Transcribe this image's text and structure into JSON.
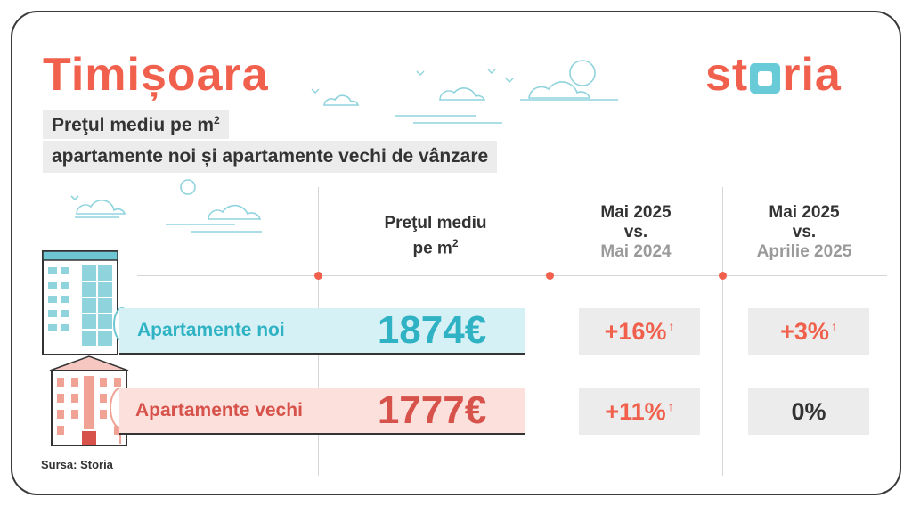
{
  "title": "Timișoara",
  "logo": {
    "part1": "st",
    "part2": "ria"
  },
  "subtitle": {
    "line1": "Preţul mediu pe m",
    "line1_sup": "2",
    "line2": "apartamente noi și apartamente vechi de vânzare"
  },
  "columns": {
    "price": {
      "line1": "Preţul mediu",
      "line2": "pe m",
      "sup": "2"
    },
    "yoy": {
      "line1": "Mai 2025",
      "line2": "vs.",
      "line3": "Mai 2024"
    },
    "mom": {
      "line1": "Mai 2025",
      "line2": "vs.",
      "line3": "Aprilie 2025"
    }
  },
  "rows": [
    {
      "label": "Apartamente noi",
      "price": "1874€",
      "yoy": "+16%",
      "mom": "+3%"
    },
    {
      "label": "Apartamente vechi",
      "price": "1777€",
      "yoy": "+11%",
      "mom": "0%"
    }
  ],
  "arrow_symbol": "↑",
  "source": "Sursa: Storia",
  "colors": {
    "accent": "#f0604d",
    "teal": "#2fb3c4",
    "teal_light": "#d6f1f5",
    "coral_light": "#fbe0dc",
    "panel_gray": "#ececec"
  },
  "icons": [
    "cloud-icon",
    "bird-icon",
    "modern-building-icon",
    "old-building-icon",
    "tree-icon"
  ]
}
